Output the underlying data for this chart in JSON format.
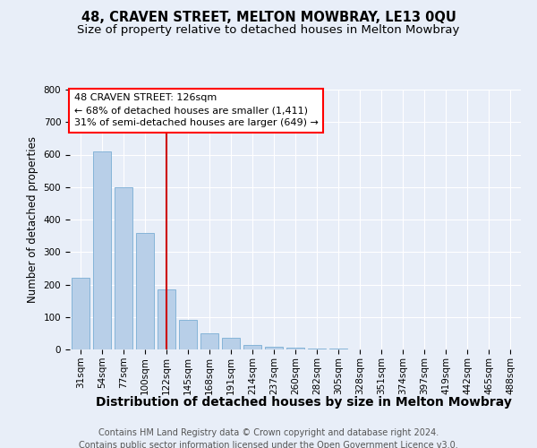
{
  "title": "48, CRAVEN STREET, MELTON MOWBRAY, LE13 0QU",
  "subtitle": "Size of property relative to detached houses in Melton Mowbray",
  "xlabel": "Distribution of detached houses by size in Melton Mowbray",
  "ylabel": "Number of detached properties",
  "categories": [
    "31sqm",
    "54sqm",
    "77sqm",
    "100sqm",
    "122sqm",
    "145sqm",
    "168sqm",
    "191sqm",
    "214sqm",
    "237sqm",
    "260sqm",
    "282sqm",
    "305sqm",
    "328sqm",
    "351sqm",
    "374sqm",
    "397sqm",
    "419sqm",
    "442sqm",
    "465sqm",
    "488sqm"
  ],
  "values": [
    220,
    610,
    500,
    360,
    185,
    90,
    50,
    35,
    15,
    8,
    5,
    3,
    2,
    1,
    1,
    0,
    0,
    0,
    0,
    0,
    0
  ],
  "bar_color": "#b8cfe8",
  "bar_edge_color": "#7aadd4",
  "highlight_index": 4,
  "highlight_color": "#cc0000",
  "annotation_text_line1": "48 CRAVEN STREET: 126sqm",
  "annotation_text_line2": "← 68% of detached houses are smaller (1,411)",
  "annotation_text_line3": "31% of semi-detached houses are larger (649) →",
  "ylim": [
    0,
    800
  ],
  "yticks": [
    0,
    100,
    200,
    300,
    400,
    500,
    600,
    700,
    800
  ],
  "footer_line1": "Contains HM Land Registry data © Crown copyright and database right 2024.",
  "footer_line2": "Contains public sector information licensed under the Open Government Licence v3.0.",
  "bg_color": "#e8eef8",
  "plot_bg_color": "#e8eef8",
  "grid_color": "#ffffff",
  "title_fontsize": 10.5,
  "subtitle_fontsize": 9.5,
  "xlabel_fontsize": 10,
  "ylabel_fontsize": 8.5,
  "tick_fontsize": 7.5,
  "footer_fontsize": 7,
  "annotation_fontsize": 8
}
